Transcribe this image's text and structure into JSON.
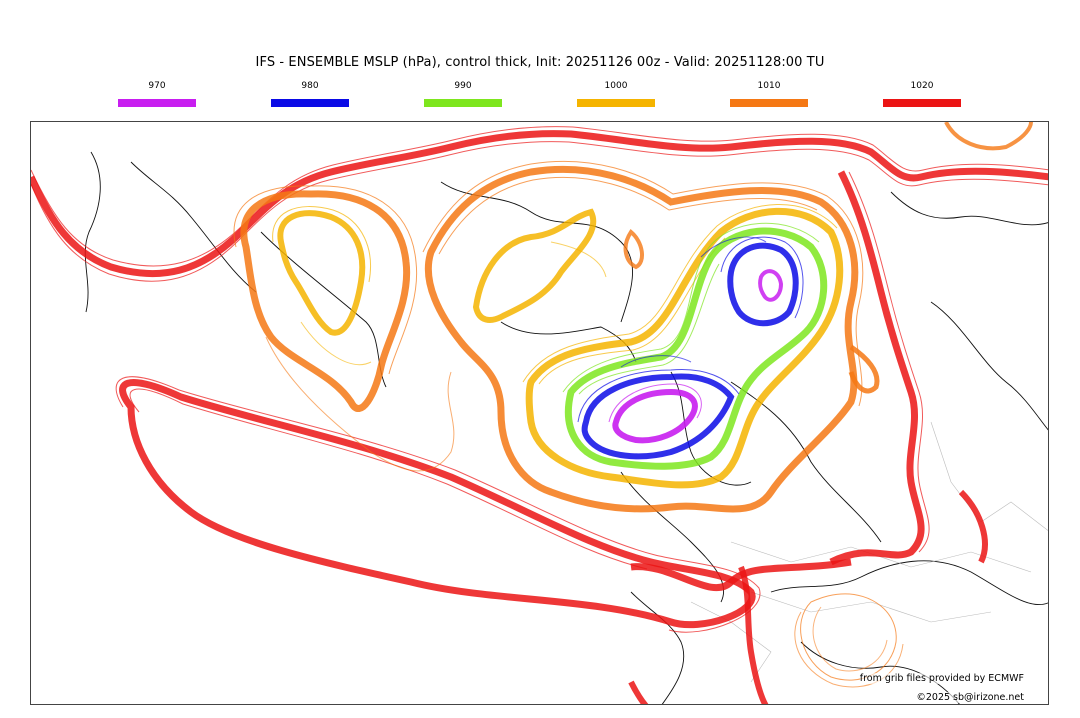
{
  "title": "IFS - ENSEMBLE MSLP (hPa), control thick, Init: 20251126 00z - Valid: 20251128:00 TU",
  "legend": [
    {
      "label": "970",
      "color": "#c81ef0"
    },
    {
      "label": "980",
      "color": "#0a0ae6"
    },
    {
      "label": "990",
      "color": "#7ee61e"
    },
    {
      "label": "1000",
      "color": "#f5b400"
    },
    {
      "label": "1010",
      "color": "#f57814"
    },
    {
      "label": "1020",
      "color": "#eb1414"
    }
  ],
  "credits": {
    "source": "from grib files provided by ECMWF",
    "copyright": "©2025 sb@irizone.net"
  }
}
